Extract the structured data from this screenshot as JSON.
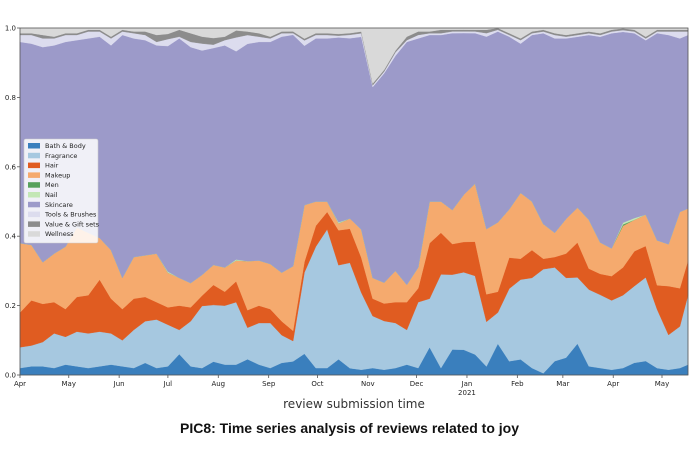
{
  "caption": "PIC8: Time series analysis of reviews related to joy",
  "chart_data": {
    "type": "area",
    "stacked": true,
    "normalized": true,
    "xlabel": "review submission time",
    "ylabel": "",
    "ylim": [
      0,
      1
    ],
    "yticks": [
      "0.0",
      "0.2",
      "0.4",
      "0.6",
      "0.8",
      "1.0"
    ],
    "yticks_values": [
      0,
      0.2,
      0.4,
      0.6,
      0.8,
      1.0
    ],
    "xlim": [
      "2020-04-01",
      "2021-05-17"
    ],
    "xticks": [
      {
        "date": "2020-04-01",
        "label": "Apr"
      },
      {
        "date": "2020-05-01",
        "label": "May"
      },
      {
        "date": "2020-06-01",
        "label": "Jun"
      },
      {
        "date": "2020-07-01",
        "label": "Jul"
      },
      {
        "date": "2020-08-01",
        "label": "Aug"
      },
      {
        "date": "2020-09-01",
        "label": "Sep"
      },
      {
        "date": "2020-10-01",
        "label": "Oct"
      },
      {
        "date": "2020-11-01",
        "label": "Nov"
      },
      {
        "date": "2020-12-01",
        "label": "Dec"
      },
      {
        "date": "2021-01-01",
        "label": "Jan",
        "sublabel": "2021"
      },
      {
        "date": "2021-02-01",
        "label": "Feb"
      },
      {
        "date": "2021-03-01",
        "label": "Mar"
      },
      {
        "date": "2021-04-01",
        "label": "Apr"
      },
      {
        "date": "2021-05-01",
        "label": "May"
      }
    ],
    "legend_position": "center-left",
    "grid": false,
    "x": [
      "2020-04-01",
      "2020-04-08",
      "2020-04-15",
      "2020-04-22",
      "2020-04-29",
      "2020-05-06",
      "2020-05-13",
      "2020-05-20",
      "2020-05-27",
      "2020-06-03",
      "2020-06-10",
      "2020-06-17",
      "2020-06-24",
      "2020-07-01",
      "2020-07-08",
      "2020-07-15",
      "2020-07-22",
      "2020-07-29",
      "2020-08-05",
      "2020-08-12",
      "2020-08-19",
      "2020-08-26",
      "2020-09-02",
      "2020-09-09",
      "2020-09-16",
      "2020-09-23",
      "2020-09-30",
      "2020-10-07",
      "2020-10-14",
      "2020-10-21",
      "2020-10-28",
      "2020-11-04",
      "2020-11-11",
      "2020-11-18",
      "2020-11-25",
      "2020-12-02",
      "2020-12-09",
      "2020-12-16",
      "2020-12-23",
      "2020-12-30",
      "2021-01-06",
      "2021-01-13",
      "2021-01-20",
      "2021-01-27",
      "2021-02-03",
      "2021-02-10",
      "2021-02-17",
      "2021-02-24",
      "2021-03-03",
      "2021-03-10",
      "2021-03-17",
      "2021-03-24",
      "2021-03-31",
      "2021-04-07",
      "2021-04-14",
      "2021-04-21",
      "2021-04-28",
      "2021-05-05",
      "2021-05-12",
      "2021-05-17"
    ],
    "series": [
      {
        "name": "Bath & Body",
        "color": "#3a7fbd",
        "values": [
          0.02,
          0.025,
          0.025,
          0.02,
          0.03,
          0.025,
          0.02,
          0.025,
          0.03,
          0.025,
          0.02,
          0.035,
          0.02,
          0.025,
          0.06,
          0.025,
          0.02,
          0.04,
          0.03,
          0.03,
          0.045,
          0.03,
          0.02,
          0.035,
          0.04,
          0.06,
          0.02,
          0.02,
          0.045,
          0.02,
          0.015,
          0.02,
          0.015,
          0.02,
          0.03,
          0.02,
          0.08,
          0.02,
          0.075,
          0.075,
          0.06,
          0.025,
          0.09,
          0.04,
          0.045,
          0.02,
          0.005,
          0.04,
          0.05,
          0.09,
          0.025,
          0.02,
          0.015,
          0.02,
          0.035,
          0.04,
          0.02,
          0.015,
          0.02,
          0.03
        ]
      },
      {
        "name": "Fragrance",
        "color": "#a6c8e0",
        "values": [
          0.06,
          0.06,
          0.07,
          0.1,
          0.08,
          0.1,
          0.1,
          0.1,
          0.09,
          0.075,
          0.11,
          0.12,
          0.14,
          0.12,
          0.07,
          0.13,
          0.18,
          0.17,
          0.17,
          0.18,
          0.09,
          0.12,
          0.13,
          0.08,
          0.06,
          0.23,
          0.35,
          0.4,
          0.27,
          0.31,
          0.22,
          0.15,
          0.14,
          0.13,
          0.1,
          0.19,
          0.14,
          0.27,
          0.22,
          0.23,
          0.23,
          0.13,
          0.09,
          0.21,
          0.23,
          0.26,
          0.3,
          0.27,
          0.23,
          0.19,
          0.22,
          0.21,
          0.2,
          0.21,
          0.22,
          0.24,
          0.17,
          0.1,
          0.12,
          0.2
        ]
      },
      {
        "name": "Hair",
        "color": "#e05c21",
        "values": [
          0.1,
          0.13,
          0.11,
          0.09,
          0.08,
          0.1,
          0.11,
          0.15,
          0.1,
          0.09,
          0.09,
          0.07,
          0.05,
          0.05,
          0.07,
          0.04,
          0.03,
          0.06,
          0.04,
          0.06,
          0.05,
          0.05,
          0.04,
          0.04,
          0.03,
          0.03,
          0.06,
          0.05,
          0.1,
          0.1,
          0.1,
          0.05,
          0.05,
          0.06,
          0.08,
          0.04,
          0.16,
          0.12,
          0.09,
          0.09,
          0.1,
          0.08,
          0.06,
          0.09,
          0.06,
          0.08,
          0.03,
          0.03,
          0.07,
          0.1,
          0.06,
          0.06,
          0.07,
          0.08,
          0.1,
          0.09,
          0.07,
          0.14,
          0.11,
          0.1
        ]
      },
      {
        "name": "Makeup",
        "color": "#f5aa6e",
        "values": [
          0.2,
          0.16,
          0.12,
          0.14,
          0.18,
          0.2,
          0.18,
          0.12,
          0.14,
          0.09,
          0.12,
          0.12,
          0.14,
          0.1,
          0.08,
          0.07,
          0.06,
          0.06,
          0.07,
          0.06,
          0.14,
          0.13,
          0.13,
          0.14,
          0.19,
          0.16,
          0.07,
          0.03,
          0.02,
          0.03,
          0.08,
          0.06,
          0.06,
          0.09,
          0.05,
          0.06,
          0.12,
          0.09,
          0.1,
          0.14,
          0.17,
          0.19,
          0.2,
          0.14,
          0.19,
          0.14,
          0.1,
          0.07,
          0.1,
          0.1,
          0.14,
          0.09,
          0.08,
          0.12,
          0.09,
          0.09,
          0.13,
          0.12,
          0.22,
          0.15
        ]
      },
      {
        "name": "Men",
        "color": "#57a15c",
        "values": [
          0,
          0,
          0,
          0,
          0,
          0,
          0,
          0,
          0,
          0,
          0,
          0,
          0,
          0,
          0,
          0,
          0,
          0,
          0,
          0,
          0,
          0,
          0,
          0,
          0,
          0,
          0,
          0,
          0,
          0,
          0,
          0,
          0,
          0,
          0,
          0,
          0,
          0,
          0,
          0,
          0,
          0,
          0,
          0,
          0,
          0,
          0,
          0,
          0,
          0,
          0,
          0,
          0,
          0.004,
          0,
          0,
          0,
          0,
          0,
          0
        ]
      },
      {
        "name": "Nail",
        "color": "#c3e7b5",
        "values": [
          0,
          0,
          0,
          0,
          0,
          0,
          0,
          0,
          0,
          0,
          0,
          0,
          0,
          0.003,
          0,
          0,
          0,
          0,
          0,
          0.003,
          0,
          0,
          0,
          0,
          0,
          0,
          0,
          0,
          0.003,
          0,
          0,
          0,
          0,
          0,
          0,
          0,
          0,
          0,
          0,
          0,
          0,
          0,
          0,
          0,
          0,
          0,
          0,
          0,
          0,
          0,
          0,
          0,
          0,
          0.005,
          0.005,
          0,
          0,
          0,
          0,
          0
        ]
      },
      {
        "name": "Skincare",
        "color": "#9c9ac9",
        "values": [
          0.58,
          0.58,
          0.62,
          0.6,
          0.59,
          0.54,
          0.56,
          0.58,
          0.59,
          0.7,
          0.63,
          0.62,
          0.6,
          0.65,
          0.69,
          0.68,
          0.65,
          0.65,
          0.64,
          0.6,
          0.62,
          0.63,
          0.64,
          0.68,
          0.68,
          0.45,
          0.47,
          0.47,
          0.53,
          0.53,
          0.55,
          0.55,
          0.6,
          0.62,
          0.7,
          0.66,
          0.48,
          0.48,
          0.52,
          0.48,
          0.44,
          0.56,
          0.55,
          0.5,
          0.43,
          0.48,
          0.55,
          0.56,
          0.52,
          0.49,
          0.53,
          0.59,
          0.62,
          0.55,
          0.53,
          0.5,
          0.6,
          0.6,
          0.5,
          0.5
        ]
      },
      {
        "name": "Tools & Brushes",
        "color": "#dcdcee",
        "values": [
          0.02,
          0.025,
          0.025,
          0.02,
          0.02,
          0.015,
          0.02,
          0.015,
          0.02,
          0.01,
          0.015,
          0.015,
          0.01,
          0.02,
          0.005,
          0.015,
          0.02,
          0.01,
          0.015,
          0.04,
          0.025,
          0.015,
          0.01,
          0.01,
          0.005,
          0.015,
          0.01,
          0.01,
          0.005,
          0.01,
          0.01,
          0.005,
          0.005,
          0.01,
          0.005,
          0.01,
          0.005,
          0.005,
          0.005,
          0.005,
          0.005,
          0.01,
          0.005,
          0.005,
          0.01,
          0.005,
          0.005,
          0.01,
          0.005,
          0.005,
          0.005,
          0.005,
          0.005,
          0.005,
          0.005,
          0.005,
          0.005,
          0.01,
          0.02,
          0.01
        ]
      },
      {
        "name": "Value & Gift sets",
        "color": "#8c8c8c",
        "values": [
          0.005,
          0.005,
          0.01,
          0.005,
          0.005,
          0.005,
          0.005,
          0.005,
          0.005,
          0.005,
          0.005,
          0.01,
          0.02,
          0.015,
          0.02,
          0.025,
          0.02,
          0.02,
          0.01,
          0.02,
          0.01,
          0.01,
          0.005,
          0.005,
          0.005,
          0.005,
          0.005,
          0.005,
          0.005,
          0.005,
          0.005,
          0.005,
          0.005,
          0.005,
          0.01,
          0.01,
          0.005,
          0.01,
          0.005,
          0.005,
          0.005,
          0.01,
          0.005,
          0.005,
          0.005,
          0.005,
          0.005,
          0.005,
          0.005,
          0.005,
          0.005,
          0.005,
          0.005,
          0.005,
          0.005,
          0.005,
          0.005,
          0.005,
          0.005,
          0.005
        ]
      },
      {
        "name": "Wellness",
        "color": "#d9d9d9",
        "values": [
          0.015,
          0.015,
          0.02,
          0.025,
          0.015,
          0.015,
          0.005,
          0.005,
          0.025,
          0.005,
          0.01,
          0.01,
          0.02,
          0.017,
          0.005,
          0.015,
          0.025,
          0.03,
          0.025,
          0.007,
          0.01,
          0.015,
          0.025,
          0.01,
          0.01,
          0.03,
          0.015,
          0.015,
          0.017,
          0.015,
          0.01,
          0.16,
          0.12,
          0.065,
          0.025,
          0.01,
          0.01,
          0.005,
          0.005,
          0.005,
          0.005,
          0.005,
          0,
          0.015,
          0.03,
          0.01,
          0.005,
          0.015,
          0.02,
          0.015,
          0.01,
          0.015,
          0.005,
          0.001,
          0.005,
          0.025,
          0.005,
          0.005,
          0.005,
          0.005
        ]
      }
    ]
  }
}
